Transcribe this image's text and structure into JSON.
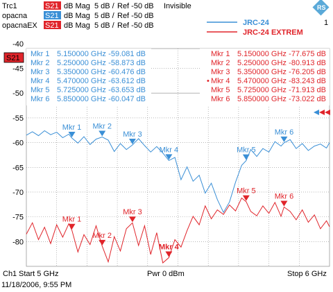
{
  "header": {
    "traces": [
      {
        "name": "Trc1",
        "param": "S21",
        "format": "dB Mag",
        "scale": "5 dB /",
        "ref": "Ref -50 dB",
        "state": "Invisible"
      },
      {
        "name": "opacna",
        "param": "S21",
        "format": "dB Mag",
        "scale": "5 dB /",
        "ref": "Ref -50 dB",
        "state": ""
      },
      {
        "name": "opacnaEX",
        "param": "S21",
        "format": "dB Mag",
        "scale": "5 dB /",
        "ref": "Ref -50 dB",
        "state": ""
      }
    ],
    "channel_number": "1",
    "active_trace_badge": "S21"
  },
  "footer": {
    "channel": "Ch1",
    "start": "Start  5 GHz",
    "power": "Pwr  0 dBm",
    "stop": "Stop  6 GHz",
    "timestamp": "11/18/2006, 9:55 PM"
  },
  "colors": {
    "blue": "#3a8fd6",
    "red": "#e0242a",
    "grid": "#8a8a8a",
    "text": "#000000",
    "logo": "#5aa9d8"
  },
  "chart_data": {
    "type": "line",
    "xlabel": "",
    "ylabel": "",
    "xlim": [
      5.0,
      6.0
    ],
    "ylim": [
      -85,
      -40
    ],
    "ytick_labels": [
      "-40",
      "-45",
      "-50",
      "-55",
      "-60",
      "-65",
      "-70",
      "-75",
      "-80"
    ],
    "ytick_values": [
      -40,
      -45,
      -50,
      -55,
      -60,
      -65,
      -70,
      -75,
      -80
    ],
    "grid": true,
    "legend": {
      "placement": "top-right"
    },
    "series": [
      {
        "name": "JRC-24",
        "color": "#3a8fd6",
        "x": [
          5.0,
          5.02,
          5.04,
          5.06,
          5.08,
          5.1,
          5.12,
          5.14,
          5.15,
          5.17,
          5.19,
          5.21,
          5.23,
          5.25,
          5.27,
          5.29,
          5.31,
          5.33,
          5.35,
          5.37,
          5.39,
          5.41,
          5.43,
          5.45,
          5.47,
          5.49,
          5.51,
          5.53,
          5.55,
          5.57,
          5.59,
          5.61,
          5.63,
          5.65,
          5.67,
          5.69,
          5.71,
          5.725,
          5.74,
          5.76,
          5.78,
          5.8,
          5.82,
          5.84,
          5.85,
          5.87,
          5.89,
          5.91,
          5.93,
          5.95,
          5.97,
          5.99,
          6.0
        ],
        "y": [
          -58.5,
          -57.8,
          -58.6,
          -57.6,
          -58.4,
          -57.9,
          -59.0,
          -58.3,
          -59.08,
          -60.1,
          -58.8,
          -60.4,
          -59.3,
          -58.87,
          -59.5,
          -61.8,
          -60.2,
          -61.4,
          -60.48,
          -59.2,
          -60.6,
          -61.9,
          -60.8,
          -62.1,
          -63.61,
          -63.0,
          -67.5,
          -64.9,
          -67.8,
          -66.6,
          -70.2,
          -68.2,
          -71.5,
          -74.1,
          -72.0,
          -68.0,
          -64.6,
          -63.65,
          -61.4,
          -62.8,
          -61.2,
          -61.9,
          -59.8,
          -60.7,
          -60.05,
          -59.4,
          -61.2,
          -60.2,
          -61.6,
          -60.7,
          -60.3,
          -61.1,
          -60.0
        ]
      },
      {
        "name": "JRC-24 EXTREM",
        "color": "#e0242a",
        "x": [
          5.0,
          5.02,
          5.04,
          5.06,
          5.08,
          5.1,
          5.12,
          5.14,
          5.15,
          5.17,
          5.19,
          5.21,
          5.23,
          5.25,
          5.27,
          5.29,
          5.31,
          5.33,
          5.35,
          5.37,
          5.39,
          5.41,
          5.43,
          5.45,
          5.47,
          5.49,
          5.51,
          5.53,
          5.55,
          5.57,
          5.59,
          5.61,
          5.63,
          5.65,
          5.67,
          5.69,
          5.71,
          5.725,
          5.74,
          5.76,
          5.78,
          5.8,
          5.82,
          5.84,
          5.85,
          5.87,
          5.89,
          5.91,
          5.93,
          5.95,
          5.97,
          5.99,
          6.0
        ],
        "y": [
          -78.5,
          -76.2,
          -79.6,
          -77.1,
          -80.4,
          -76.6,
          -79.1,
          -76.4,
          -77.68,
          -82.1,
          -78.6,
          -80.6,
          -76.8,
          -80.91,
          -84.1,
          -79.0,
          -81.9,
          -77.4,
          -76.21,
          -80.8,
          -76.8,
          -82.6,
          -78.2,
          -84.3,
          -83.24,
          -79.6,
          -81.1,
          -77.8,
          -74.9,
          -76.6,
          -72.8,
          -75.4,
          -73.6,
          -74.5,
          -72.6,
          -73.8,
          -71.2,
          -71.92,
          -73.9,
          -74.8,
          -72.8,
          -74.3,
          -72.1,
          -74.9,
          -73.02,
          -73.9,
          -75.6,
          -73.6,
          -76.1,
          -74.6,
          -77.4,
          -75.8,
          -77.0
        ]
      }
    ],
    "markers": {
      "JRC-24": [
        {
          "label": "Mkr 1",
          "freq": "5.150000 GHz",
          "value": "-59.081 dB",
          "x": 5.15,
          "y": -59.081,
          "active": false
        },
        {
          "label": "Mkr 2",
          "freq": "5.250000 GHz",
          "value": "-58.873 dB",
          "x": 5.25,
          "y": -58.873,
          "active": false
        },
        {
          "label": "Mkr 3",
          "freq": "5.350000 GHz",
          "value": "-60.476 dB",
          "x": 5.35,
          "y": -60.476,
          "active": false
        },
        {
          "label": "Mkr 4",
          "freq": "5.470000 GHz",
          "value": "-63.612 dB",
          "x": 5.47,
          "y": -63.612,
          "active": false
        },
        {
          "label": "Mkr 5",
          "freq": "5.725000 GHz",
          "value": "-63.653 dB",
          "x": 5.725,
          "y": -63.653,
          "active": false
        },
        {
          "label": "Mkr 6",
          "freq": "5.850000 GHz",
          "value": "-60.047 dB",
          "x": 5.85,
          "y": -60.047,
          "active": false
        }
      ],
      "JRC-24 EXTREM": [
        {
          "label": "Mkr 1",
          "freq": "5.150000 GHz",
          "value": "-77.675 dB",
          "x": 5.15,
          "y": -77.675,
          "active": false
        },
        {
          "label": "Mkr 2",
          "freq": "5.250000 GHz",
          "value": "-80.913 dB",
          "x": 5.25,
          "y": -80.913,
          "active": false
        },
        {
          "label": "Mkr 3",
          "freq": "5.350000 GHz",
          "value": "-76.205 dB",
          "x": 5.35,
          "y": -76.205,
          "active": false
        },
        {
          "label": "Mkr 4",
          "freq": "5.470000 GHz",
          "value": "-83.243 dB",
          "x": 5.47,
          "y": -83.243,
          "active": true
        },
        {
          "label": "Mkr 5",
          "freq": "5.725000 GHz",
          "value": "-71.913 dB",
          "x": 5.725,
          "y": -71.913,
          "active": false
        },
        {
          "label": "Mkr 6",
          "freq": "5.850000 GHz",
          "value": "-73.022 dB",
          "x": 5.85,
          "y": -73.022,
          "active": false
        }
      ]
    }
  }
}
